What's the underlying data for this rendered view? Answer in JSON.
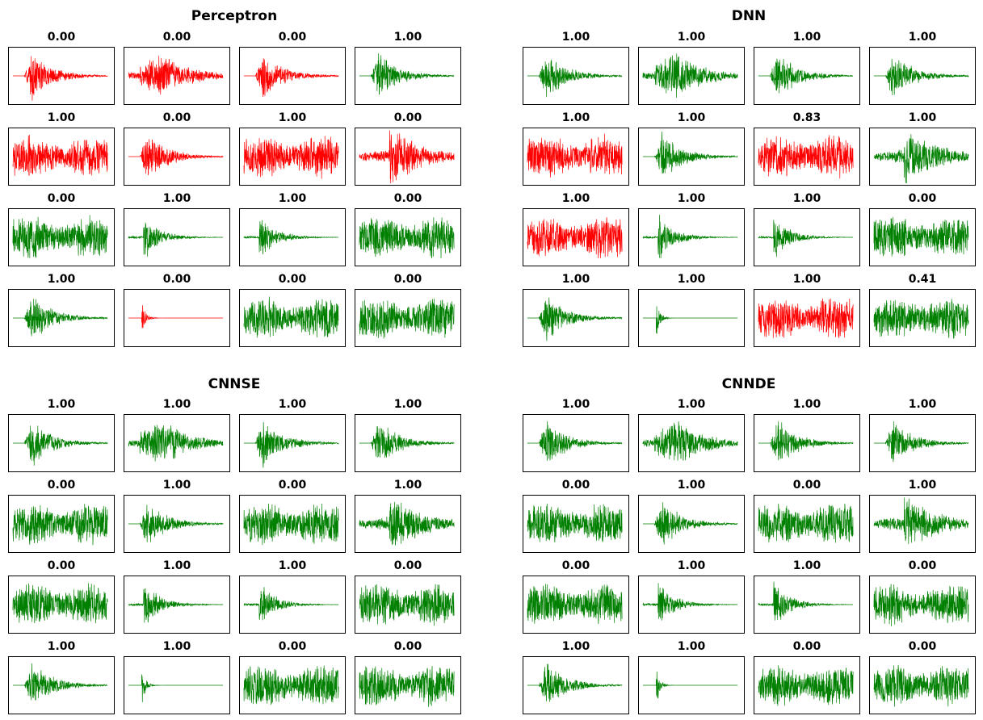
{
  "colors": {
    "correct": "#008000",
    "incorrect": "#ff0000"
  },
  "chart_data": [
    {
      "type": "waveform-grid",
      "title": "Perceptron",
      "panels": [
        {
          "score": "0.00",
          "color": "red",
          "shape": "decay"
        },
        {
          "score": "0.00",
          "color": "red",
          "shape": "mid"
        },
        {
          "score": "0.00",
          "color": "red",
          "shape": "decay"
        },
        {
          "score": "1.00",
          "color": "green",
          "shape": "decay"
        },
        {
          "score": "1.00",
          "color": "red",
          "shape": "noise"
        },
        {
          "score": "0.00",
          "color": "red",
          "shape": "decay"
        },
        {
          "score": "1.00",
          "color": "red",
          "shape": "noise"
        },
        {
          "score": "0.00",
          "color": "red",
          "shape": "late"
        },
        {
          "score": "0.00",
          "color": "green",
          "shape": "noise"
        },
        {
          "score": "1.00",
          "color": "green",
          "shape": "sharp"
        },
        {
          "score": "1.00",
          "color": "green",
          "shape": "sharp"
        },
        {
          "score": "0.00",
          "color": "green",
          "shape": "noise"
        },
        {
          "score": "1.00",
          "color": "green",
          "shape": "decay"
        },
        {
          "score": "0.00",
          "color": "red",
          "shape": "spike"
        },
        {
          "score": "0.00",
          "color": "green",
          "shape": "noise"
        },
        {
          "score": "0.00",
          "color": "green",
          "shape": "noise"
        }
      ]
    },
    {
      "type": "waveform-grid",
      "title": "DNN",
      "panels": [
        {
          "score": "1.00",
          "color": "green",
          "shape": "decay"
        },
        {
          "score": "1.00",
          "color": "green",
          "shape": "mid"
        },
        {
          "score": "1.00",
          "color": "green",
          "shape": "decay"
        },
        {
          "score": "1.00",
          "color": "green",
          "shape": "decay"
        },
        {
          "score": "1.00",
          "color": "red",
          "shape": "noise"
        },
        {
          "score": "1.00",
          "color": "green",
          "shape": "decay"
        },
        {
          "score": "0.83",
          "color": "red",
          "shape": "noise"
        },
        {
          "score": "1.00",
          "color": "green",
          "shape": "late"
        },
        {
          "score": "1.00",
          "color": "red",
          "shape": "noise"
        },
        {
          "score": "1.00",
          "color": "green",
          "shape": "sharp"
        },
        {
          "score": "1.00",
          "color": "green",
          "shape": "sharp"
        },
        {
          "score": "0.00",
          "color": "green",
          "shape": "noise"
        },
        {
          "score": "1.00",
          "color": "green",
          "shape": "decay"
        },
        {
          "score": "1.00",
          "color": "green",
          "shape": "spike"
        },
        {
          "score": "1.00",
          "color": "red",
          "shape": "noise"
        },
        {
          "score": "0.41",
          "color": "green",
          "shape": "noise"
        }
      ]
    },
    {
      "type": "waveform-grid",
      "title": "CNNSE",
      "panels": [
        {
          "score": "1.00",
          "color": "green",
          "shape": "decay"
        },
        {
          "score": "1.00",
          "color": "green",
          "shape": "mid"
        },
        {
          "score": "1.00",
          "color": "green",
          "shape": "decay"
        },
        {
          "score": "1.00",
          "color": "green",
          "shape": "decay"
        },
        {
          "score": "0.00",
          "color": "green",
          "shape": "noise"
        },
        {
          "score": "1.00",
          "color": "green",
          "shape": "decay"
        },
        {
          "score": "0.00",
          "color": "green",
          "shape": "noise"
        },
        {
          "score": "1.00",
          "color": "green",
          "shape": "late"
        },
        {
          "score": "0.00",
          "color": "green",
          "shape": "noise"
        },
        {
          "score": "1.00",
          "color": "green",
          "shape": "sharp"
        },
        {
          "score": "1.00",
          "color": "green",
          "shape": "sharp"
        },
        {
          "score": "0.00",
          "color": "green",
          "shape": "noise"
        },
        {
          "score": "1.00",
          "color": "green",
          "shape": "decay"
        },
        {
          "score": "1.00",
          "color": "green",
          "shape": "spike"
        },
        {
          "score": "0.00",
          "color": "green",
          "shape": "noise"
        },
        {
          "score": "0.00",
          "color": "green",
          "shape": "noise"
        }
      ]
    },
    {
      "type": "waveform-grid",
      "title": "CNNDE",
      "panels": [
        {
          "score": "1.00",
          "color": "green",
          "shape": "decay"
        },
        {
          "score": "1.00",
          "color": "green",
          "shape": "mid"
        },
        {
          "score": "1.00",
          "color": "green",
          "shape": "decay"
        },
        {
          "score": "1.00",
          "color": "green",
          "shape": "decay"
        },
        {
          "score": "0.00",
          "color": "green",
          "shape": "noise"
        },
        {
          "score": "1.00",
          "color": "green",
          "shape": "decay"
        },
        {
          "score": "0.00",
          "color": "green",
          "shape": "noise"
        },
        {
          "score": "1.00",
          "color": "green",
          "shape": "late"
        },
        {
          "score": "0.00",
          "color": "green",
          "shape": "noise"
        },
        {
          "score": "1.00",
          "color": "green",
          "shape": "sharp"
        },
        {
          "score": "1.00",
          "color": "green",
          "shape": "sharp"
        },
        {
          "score": "0.00",
          "color": "green",
          "shape": "noise"
        },
        {
          "score": "1.00",
          "color": "green",
          "shape": "decay"
        },
        {
          "score": "1.00",
          "color": "green",
          "shape": "spike"
        },
        {
          "score": "0.00",
          "color": "green",
          "shape": "noise"
        },
        {
          "score": "0.00",
          "color": "green",
          "shape": "noise"
        }
      ]
    }
  ]
}
